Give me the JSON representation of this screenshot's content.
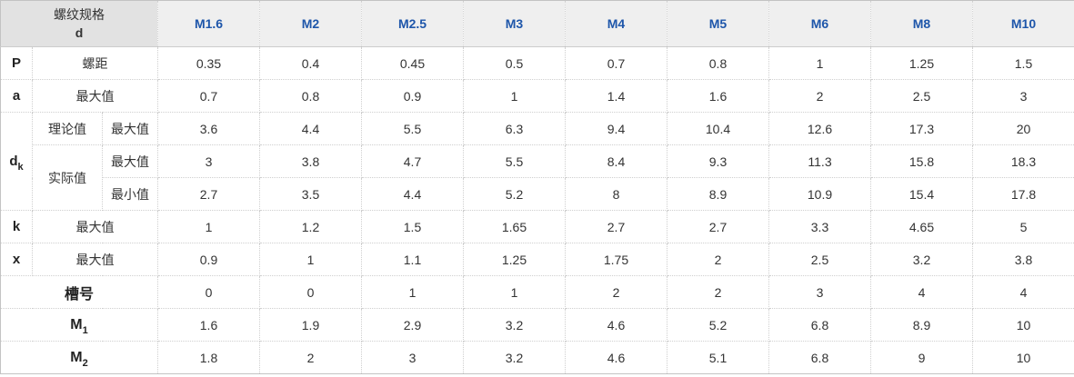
{
  "table": {
    "corner_title": "螺纹规格",
    "corner_sub": "d",
    "columns": [
      "M1.6",
      "M2",
      "M2.5",
      "M3",
      "M4",
      "M5",
      "M6",
      "M8",
      "M10"
    ],
    "row_p": {
      "key": "P",
      "label": "螺距",
      "values": [
        "0.35",
        "0.4",
        "0.45",
        "0.5",
        "0.7",
        "0.8",
        "1",
        "1.25",
        "1.5"
      ]
    },
    "row_a": {
      "key": "a",
      "label": "最大值",
      "values": [
        "0.7",
        "0.8",
        "0.9",
        "1",
        "1.4",
        "1.6",
        "2",
        "2.5",
        "3"
      ]
    },
    "row_dk_theory_max": {
      "group_key_base": "d",
      "group_key_sub": "k",
      "group_label": "理论值",
      "label": "最大值",
      "values": [
        "3.6",
        "4.4",
        "5.5",
        "6.3",
        "9.4",
        "10.4",
        "12.6",
        "17.3",
        "20"
      ]
    },
    "row_dk_actual_max": {
      "group_label": "实际值",
      "label": "最大值",
      "values": [
        "3",
        "3.8",
        "4.7",
        "5.5",
        "8.4",
        "9.3",
        "11.3",
        "15.8",
        "18.3"
      ]
    },
    "row_dk_actual_min": {
      "label": "最小值",
      "values": [
        "2.7",
        "3.5",
        "4.4",
        "5.2",
        "8",
        "8.9",
        "10.9",
        "15.4",
        "17.8"
      ]
    },
    "row_k": {
      "key": "k",
      "label": "最大值",
      "values": [
        "1",
        "1.2",
        "1.5",
        "1.65",
        "2.7",
        "2.7",
        "3.3",
        "4.65",
        "5"
      ]
    },
    "row_x": {
      "key": "x",
      "label": "最大值",
      "values": [
        "0.9",
        "1",
        "1.1",
        "1.25",
        "1.75",
        "2",
        "2.5",
        "3.2",
        "3.8"
      ]
    },
    "row_slot": {
      "label": "槽号",
      "values": [
        "0",
        "0",
        "1",
        "1",
        "2",
        "2",
        "3",
        "4",
        "4"
      ]
    },
    "row_m1": {
      "label_base": "M",
      "label_sub": "1",
      "values": [
        "1.6",
        "1.9",
        "2.9",
        "3.2",
        "4.6",
        "5.2",
        "6.8",
        "8.9",
        "10"
      ]
    },
    "row_m2": {
      "label_base": "M",
      "label_sub": "2",
      "values": [
        "1.8",
        "2",
        "3",
        "3.2",
        "4.6",
        "5.1",
        "6.8",
        "9",
        "10"
      ]
    },
    "colors": {
      "header_text": "#1e56aa",
      "header_bg": "#efefef",
      "corner_bg": "#e2e2e2",
      "border": "#cfcfcf",
      "text": "#333333"
    }
  }
}
